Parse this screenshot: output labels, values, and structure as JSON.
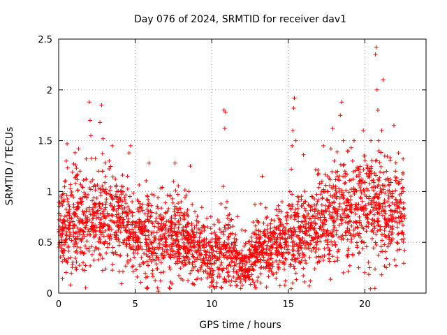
{
  "chart_data": {
    "type": "scatter",
    "title": "Day 076 of 2024, SRMTID for receiver dav1",
    "xlabel": "GPS time / hours",
    "ylabel": "SRMTID / TECUs",
    "xlim": [
      0,
      24
    ],
    "ylim": [
      0,
      2.5
    ],
    "x_ticks": [
      0,
      5,
      10,
      15,
      20
    ],
    "x_tick_labels": [
      "0",
      "5",
      "10",
      "15",
      "20"
    ],
    "y_ticks": [
      0,
      0.5,
      1,
      1.5,
      2,
      2.5
    ],
    "y_tick_labels": [
      "0",
      "0.5",
      "1",
      "1.5",
      "2",
      "2.5"
    ],
    "grid": true,
    "marker": "+",
    "color": "#ff0000",
    "series": [
      {
        "name": "dav1",
        "x_range": [
          0.0,
          22.6
        ],
        "points": [
          [
            0.05,
            0.48
          ],
          [
            0.1,
            0.72
          ],
          [
            0.15,
            0.88
          ],
          [
            0.2,
            0.55
          ],
          [
            0.3,
            0.62
          ],
          [
            0.4,
            0.42
          ],
          [
            0.5,
            1.3
          ],
          [
            0.55,
            1.47
          ],
          [
            0.6,
            0.9
          ],
          [
            0.7,
            0.78
          ],
          [
            0.8,
            0.35
          ],
          [
            0.9,
            0.28
          ],
          [
            1.0,
            0.46
          ],
          [
            1.1,
            1.08
          ],
          [
            1.2,
            0.85
          ],
          [
            1.3,
            1.42
          ],
          [
            1.4,
            1.2
          ],
          [
            1.5,
            0.62
          ],
          [
            1.6,
            0.3
          ],
          [
            1.7,
            0.95
          ],
          [
            1.8,
            1.32
          ],
          [
            1.9,
            0.72
          ],
          [
            2.0,
            1.88
          ],
          [
            2.05,
            1.7
          ],
          [
            2.1,
            1.55
          ],
          [
            2.2,
            0.82
          ],
          [
            2.3,
            0.55
          ],
          [
            2.4,
            1.05
          ],
          [
            2.5,
            0.65
          ],
          [
            2.6,
            1.2
          ],
          [
            2.7,
            1.68
          ],
          [
            2.8,
            1.85
          ],
          [
            2.9,
            1.52
          ],
          [
            3.0,
            1.0
          ],
          [
            3.1,
            0.75
          ],
          [
            3.2,
            0.45
          ],
          [
            3.3,
            1.3
          ],
          [
            3.4,
            0.88
          ],
          [
            3.5,
            1.45
          ],
          [
            3.6,
            0.7
          ],
          [
            3.7,
            0.55
          ],
          [
            3.8,
            0.38
          ],
          [
            3.9,
            0.62
          ],
          [
            4.0,
            0.85
          ],
          [
            4.1,
            1.05
          ],
          [
            4.2,
            0.7
          ],
          [
            4.3,
            0.52
          ],
          [
            4.4,
            0.8
          ],
          [
            4.5,
            1.15
          ],
          [
            4.6,
            1.38
          ],
          [
            4.7,
            1.45
          ],
          [
            4.8,
            0.9
          ],
          [
            4.9,
            0.6
          ],
          [
            5.0,
            0.42
          ],
          [
            5.1,
            0.7
          ],
          [
            5.2,
            0.55
          ],
          [
            5.3,
            0.88
          ],
          [
            5.4,
            0.35
          ],
          [
            5.5,
            0.62
          ],
          [
            5.7,
            0.5
          ],
          [
            5.8,
            0.95
          ],
          [
            5.9,
            1.28
          ],
          [
            6.0,
            0.75
          ],
          [
            6.1,
            0.6
          ],
          [
            6.2,
            0.4
          ],
          [
            6.3,
            0.55
          ],
          [
            6.5,
            0.02
          ],
          [
            6.6,
            0.45
          ],
          [
            6.7,
            0.3
          ],
          [
            6.8,
            0.65
          ],
          [
            7.0,
            0.5
          ],
          [
            7.1,
            0.8
          ],
          [
            7.2,
            0.38
          ],
          [
            7.3,
            0.6
          ],
          [
            7.5,
            1.1
          ],
          [
            7.6,
            1.28
          ],
          [
            7.8,
            0.7
          ],
          [
            7.9,
            0.45
          ],
          [
            8.0,
            0.9
          ],
          [
            8.1,
            0.3
          ],
          [
            8.3,
            0.55
          ],
          [
            8.5,
            1.0
          ],
          [
            8.6,
            1.25
          ],
          [
            8.7,
            0.62
          ],
          [
            8.9,
            0.8
          ],
          [
            9.0,
            0.4
          ],
          [
            9.1,
            0.7
          ],
          [
            9.2,
            0.5
          ],
          [
            9.4,
            0.3
          ],
          [
            9.5,
            0.45
          ],
          [
            9.6,
            0.22
          ],
          [
            9.7,
            0.15
          ],
          [
            9.8,
            0.35
          ],
          [
            9.9,
            0.5
          ],
          [
            10.0,
            0.28
          ],
          [
            10.1,
            0.42
          ],
          [
            10.2,
            0.6
          ],
          [
            10.3,
            0.32
          ],
          [
            10.4,
            0.72
          ],
          [
            10.5,
            0.48
          ],
          [
            10.6,
            0.88
          ],
          [
            10.75,
            1.05
          ],
          [
            10.8,
            1.8
          ],
          [
            10.85,
            1.62
          ],
          [
            10.9,
            1.78
          ],
          [
            11.0,
            0.9
          ],
          [
            11.1,
            0.55
          ],
          [
            11.2,
            0.65
          ],
          [
            11.4,
            0.42
          ],
          [
            11.5,
            0.3
          ],
          [
            11.6,
            0.2
          ],
          [
            11.7,
            0.35
          ],
          [
            11.8,
            0.15
          ],
          [
            11.9,
            0.25
          ],
          [
            12.0,
            0.08
          ],
          [
            12.1,
            0.22
          ],
          [
            12.2,
            0.12
          ],
          [
            12.3,
            0.3
          ],
          [
            12.4,
            0.18
          ],
          [
            12.5,
            0.38
          ],
          [
            12.6,
            0.55
          ],
          [
            12.7,
            0.7
          ],
          [
            12.8,
            0.45
          ],
          [
            12.9,
            0.62
          ],
          [
            13.0,
            0.35
          ],
          [
            13.1,
            0.5
          ],
          [
            13.2,
            0.88
          ],
          [
            13.3,
            1.15
          ],
          [
            13.4,
            0.6
          ],
          [
            13.5,
            0.4
          ],
          [
            13.6,
            0.3
          ],
          [
            13.7,
            0.55
          ],
          [
            13.8,
            0.42
          ],
          [
            13.9,
            0.28
          ],
          [
            14.0,
            0.48
          ],
          [
            14.1,
            0.65
          ],
          [
            14.2,
            0.38
          ],
          [
            14.3,
            0.55
          ],
          [
            14.4,
            0.82
          ],
          [
            14.5,
            0.45
          ],
          [
            14.6,
            0.3
          ],
          [
            14.7,
            0.6
          ],
          [
            14.8,
            0.5
          ],
          [
            14.9,
            0.72
          ],
          [
            15.0,
            0.58
          ],
          [
            15.1,
            1.0
          ],
          [
            15.2,
            1.22
          ],
          [
            15.25,
            1.45
          ],
          [
            15.3,
            1.6
          ],
          [
            15.35,
            1.82
          ],
          [
            15.4,
            1.92
          ],
          [
            15.5,
            1.5
          ],
          [
            15.6,
            0.95
          ],
          [
            15.7,
            0.65
          ],
          [
            15.8,
            0.45
          ],
          [
            15.9,
            0.7
          ],
          [
            16.0,
            0.38
          ],
          [
            16.1,
            0.6
          ],
          [
            16.2,
            0.5
          ],
          [
            16.3,
            0.78
          ],
          [
            16.4,
            0.35
          ],
          [
            16.5,
            0.55
          ],
          [
            16.6,
            0.82
          ],
          [
            16.7,
            0.45
          ],
          [
            16.8,
            0.68
          ],
          [
            16.9,
            0.9
          ],
          [
            17.0,
            0.55
          ],
          [
            17.1,
            0.72
          ],
          [
            17.2,
            1.1
          ],
          [
            17.3,
            1.45
          ],
          [
            17.4,
            0.8
          ],
          [
            17.5,
            0.6
          ],
          [
            17.6,
            1.0
          ],
          [
            17.7,
            0.42
          ],
          [
            17.8,
            0.75
          ],
          [
            17.9,
            1.62
          ],
          [
            18.0,
            1.3
          ],
          [
            18.1,
            1.05
          ],
          [
            18.2,
            0.35
          ],
          [
            18.3,
            0.55
          ],
          [
            18.4,
            1.75
          ],
          [
            18.5,
            1.88
          ],
          [
            18.6,
            1.5
          ],
          [
            18.7,
            1.2
          ],
          [
            18.8,
            0.9
          ],
          [
            18.9,
            1.4
          ],
          [
            19.0,
            0.62
          ],
          [
            19.1,
            0.8
          ],
          [
            19.2,
            1.3
          ],
          [
            19.3,
            1.5
          ],
          [
            19.4,
            0.7
          ],
          [
            19.5,
            0.45
          ],
          [
            19.6,
            0.25
          ],
          [
            19.7,
            0.55
          ],
          [
            19.8,
            1.12
          ],
          [
            19.9,
            1.6
          ],
          [
            20.0,
            1.35
          ],
          [
            20.1,
            0.95
          ],
          [
            20.2,
            0.7
          ],
          [
            20.3,
            1.2
          ],
          [
            20.4,
            1.5
          ],
          [
            20.5,
            0.62
          ],
          [
            20.6,
            1.05
          ],
          [
            20.7,
            2.35
          ],
          [
            20.75,
            2.42
          ],
          [
            20.8,
            2.0
          ],
          [
            20.85,
            1.8
          ],
          [
            20.9,
            1.5
          ],
          [
            21.0,
            0.85
          ],
          [
            21.1,
            1.6
          ],
          [
            21.2,
            2.1
          ],
          [
            21.3,
            1.35
          ],
          [
            21.4,
            0.55
          ],
          [
            21.5,
            0.9
          ],
          [
            21.6,
            0.28
          ],
          [
            21.7,
            0.65
          ],
          [
            21.8,
            1.0
          ],
          [
            21.9,
            1.65
          ],
          [
            22.0,
            1.2
          ],
          [
            22.1,
            0.5
          ],
          [
            22.2,
            1.38
          ],
          [
            22.3,
            0.8
          ],
          [
            22.4,
            0.6
          ],
          [
            22.5,
            1.0
          ],
          [
            22.6,
            0.42
          ]
        ],
        "density_pattern": [
          [
            0,
            0.62,
            0.22
          ],
          [
            1,
            0.68,
            0.25
          ],
          [
            2,
            0.75,
            0.25
          ],
          [
            3,
            0.78,
            0.24
          ],
          [
            4,
            0.72,
            0.22
          ],
          [
            5,
            0.6,
            0.2
          ],
          [
            6,
            0.52,
            0.2
          ],
          [
            7,
            0.55,
            0.2
          ],
          [
            8,
            0.55,
            0.2
          ],
          [
            9,
            0.42,
            0.18
          ],
          [
            10,
            0.35,
            0.15
          ],
          [
            11,
            0.45,
            0.2
          ],
          [
            12,
            0.25,
            0.12
          ],
          [
            13,
            0.42,
            0.15
          ],
          [
            14,
            0.45,
            0.15
          ],
          [
            15,
            0.55,
            0.2
          ],
          [
            16,
            0.58,
            0.2
          ],
          [
            17,
            0.72,
            0.22
          ],
          [
            18,
            0.75,
            0.25
          ],
          [
            19,
            0.8,
            0.25
          ],
          [
            20,
            0.9,
            0.28
          ],
          [
            21,
            0.85,
            0.28
          ],
          [
            22,
            0.8,
            0.25
          ],
          [
            22.6,
            0.8,
            0.25
          ]
        ]
      }
    ]
  }
}
